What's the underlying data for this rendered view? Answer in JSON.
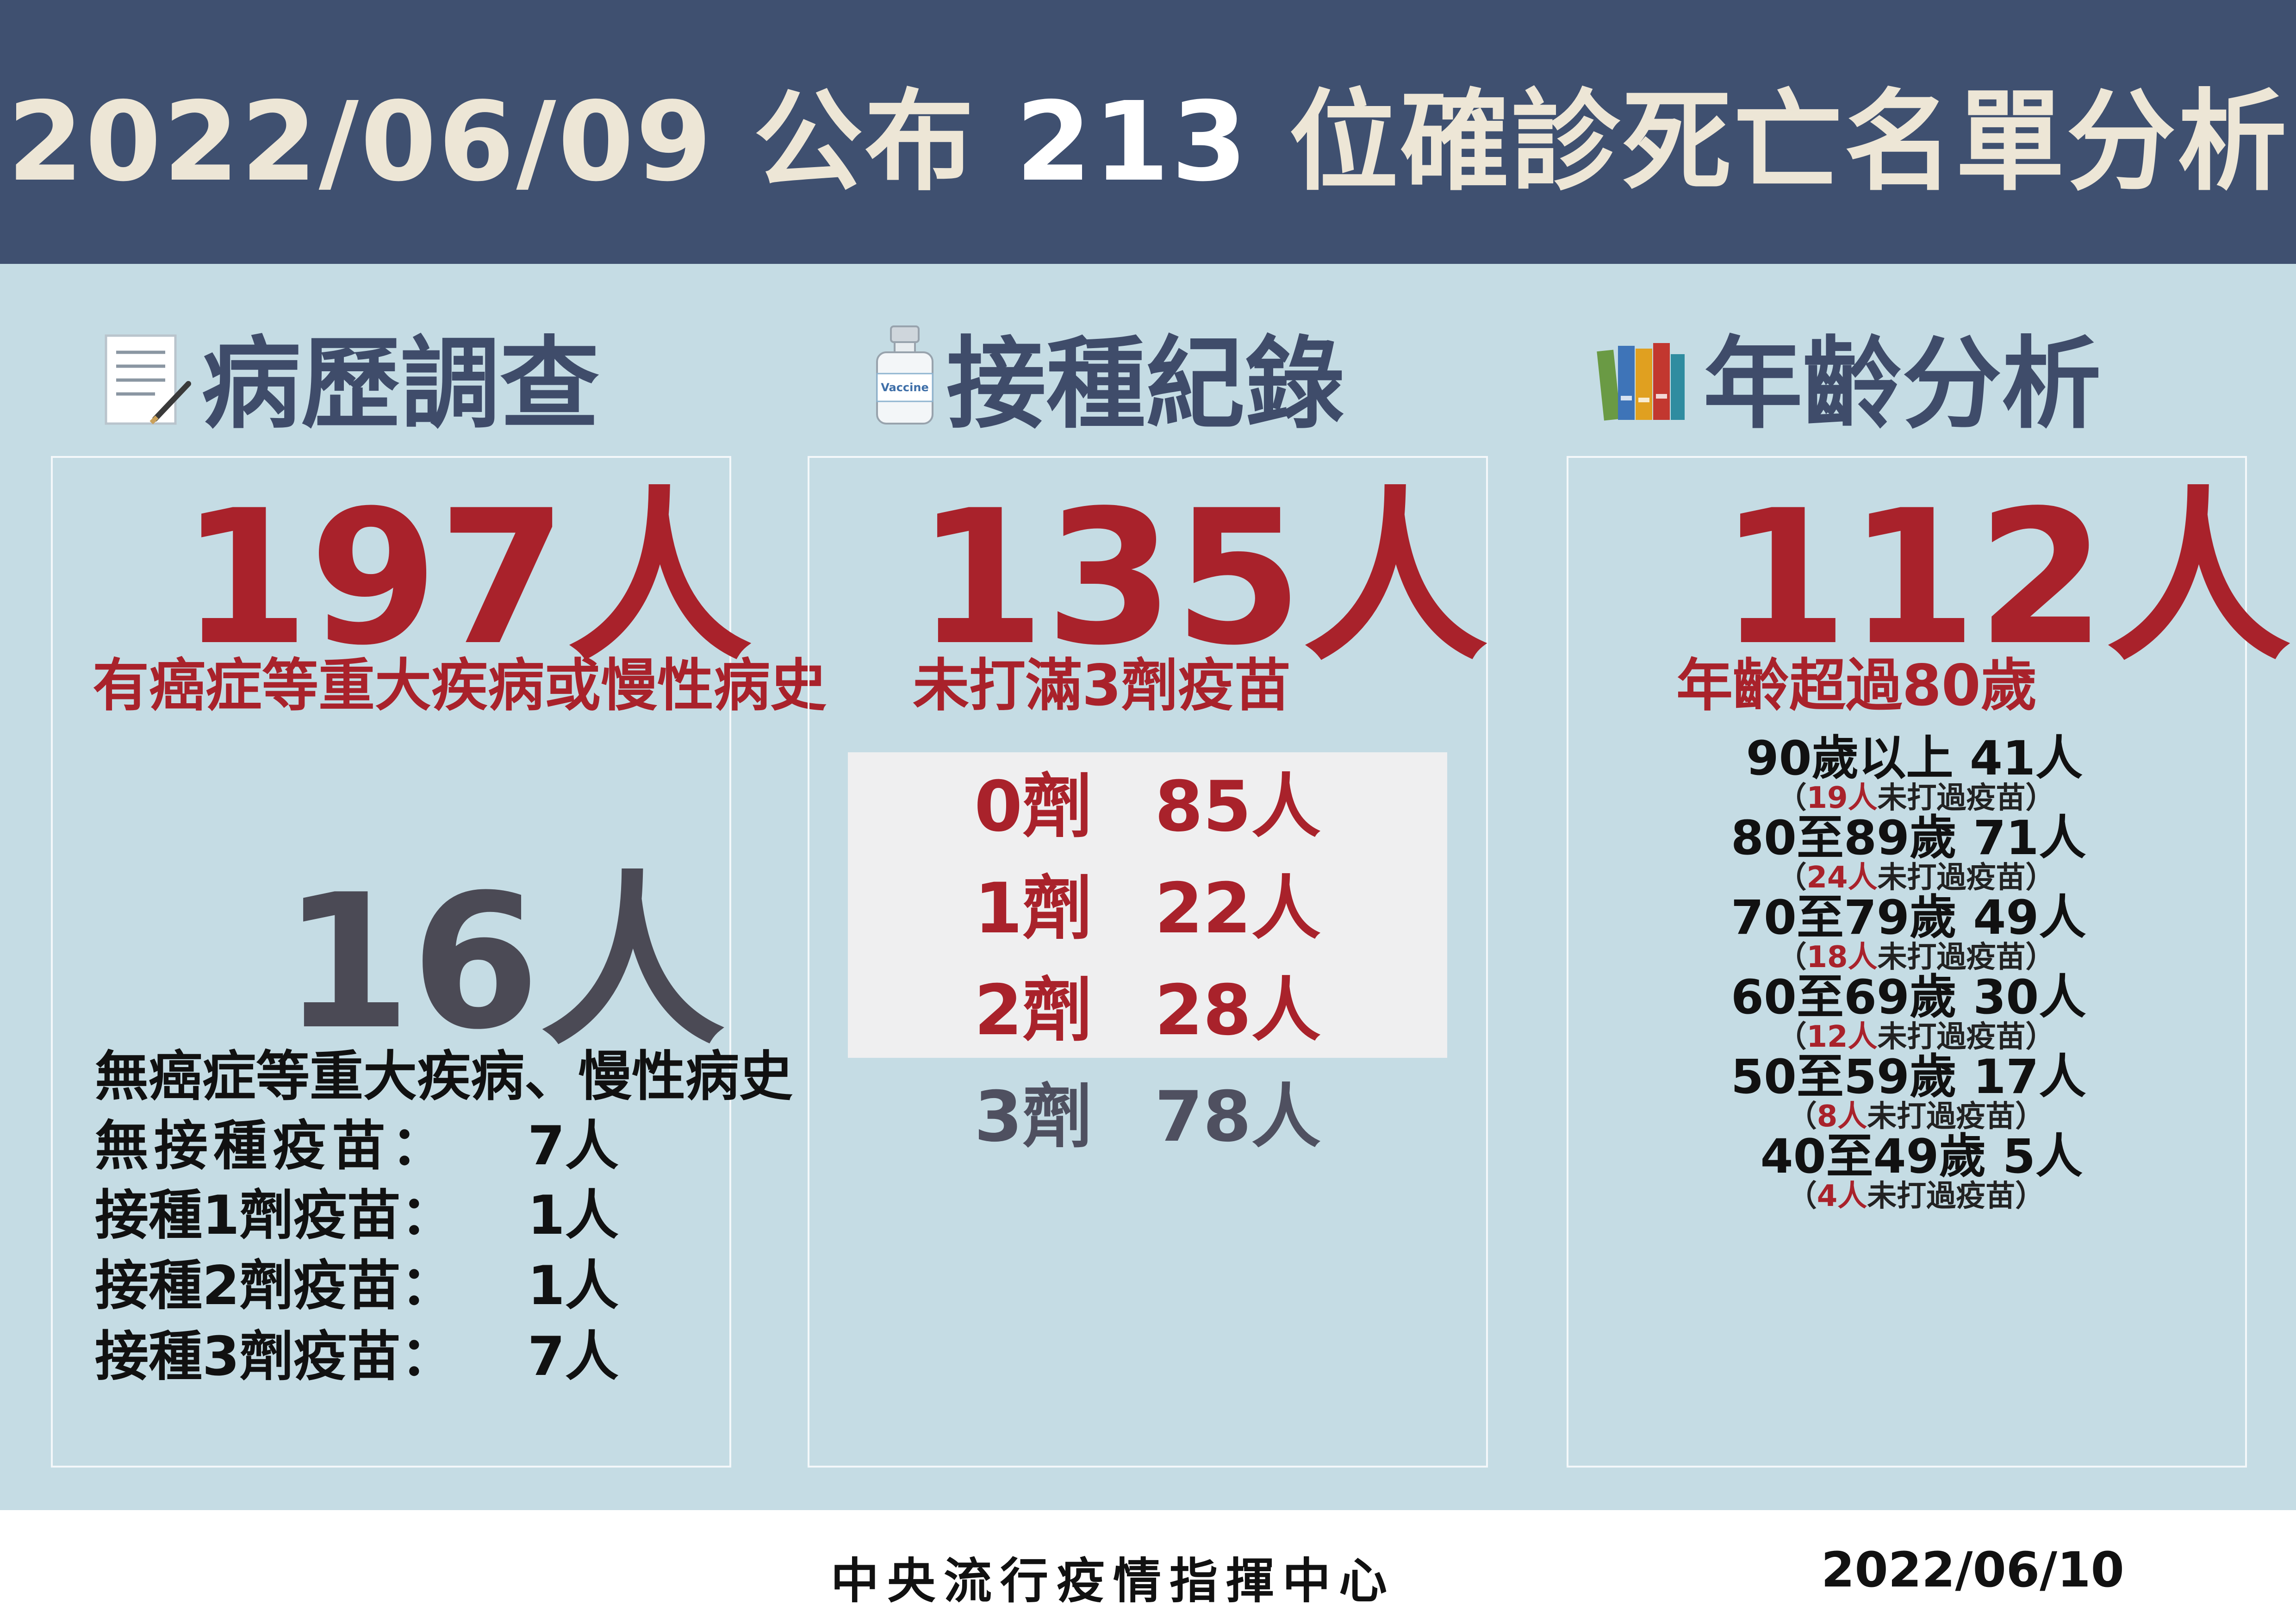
{
  "header": {
    "title_date": "2022/06/09",
    "title_word1": "公布",
    "title_count": "213",
    "title_rest": "位確診死亡名單分析"
  },
  "sections": {
    "history": "病歷調查",
    "vaccination": "接種紀錄",
    "age": "年齡分析"
  },
  "history_panel": {
    "main_value": "197人",
    "main_desc": "有癌症等重大疾病或慢性病史",
    "second_value": "16人",
    "second_desc": "無癌症等重大疾病、慢性病史",
    "breakdown": [
      {
        "label": "無接種疫苗：",
        "value": "7人"
      },
      {
        "label": "接種1劑疫苗：",
        "value": "1人"
      },
      {
        "label": "接種2劑疫苗：",
        "value": "1人"
      },
      {
        "label": "接種3劑疫苗：",
        "value": "7人"
      }
    ]
  },
  "vaccine_panel": {
    "icon_text": "Vaccine",
    "main_value": "135人",
    "main_desc": "未打滿3劑疫苗",
    "doses": [
      {
        "dose": "0劑",
        "count": "85人"
      },
      {
        "dose": "1劑",
        "count": "22人"
      },
      {
        "dose": "2劑",
        "count": "28人"
      },
      {
        "dose": "3劑",
        "count": "78人"
      }
    ]
  },
  "age_panel": {
    "main_value": "112人",
    "main_desc": "年齡超過80歲",
    "groups": [
      {
        "label": "90歲以上 41人",
        "unvax": "19人",
        "note_suffix": "未打過疫苗",
        "open": "（",
        "close": "）"
      },
      {
        "label": "80至89歲 71人",
        "unvax": "24人",
        "note_suffix": "未打過疫苗",
        "open": "（",
        "close": "）"
      },
      {
        "label": "70至79歲 49人",
        "unvax": "18人",
        "note_suffix": "未打過疫苗",
        "open": "（",
        "close": "）"
      },
      {
        "label": "60至69歲 30人",
        "unvax": "12人",
        "note_suffix": "未打過疫苗",
        "open": "（",
        "close": "）"
      },
      {
        "label": "50至59歲 17人",
        "unvax": "8人",
        "note_suffix": "未打過疫苗",
        "open": "（",
        "close": "）"
      },
      {
        "label": "40至49歲 5人",
        "unvax": "4人",
        "note_suffix": "未打過疫苗",
        "open": "（",
        "close": "）"
      }
    ]
  },
  "footer": {
    "org": "中央流行疫情指揮中心",
    "date": "2022/06/10"
  },
  "colors": {
    "header_bg": "#3f5070",
    "page_bg": "#c5dce4",
    "accent_red": "#a9222b",
    "dark_gray": "#4b4a55"
  }
}
